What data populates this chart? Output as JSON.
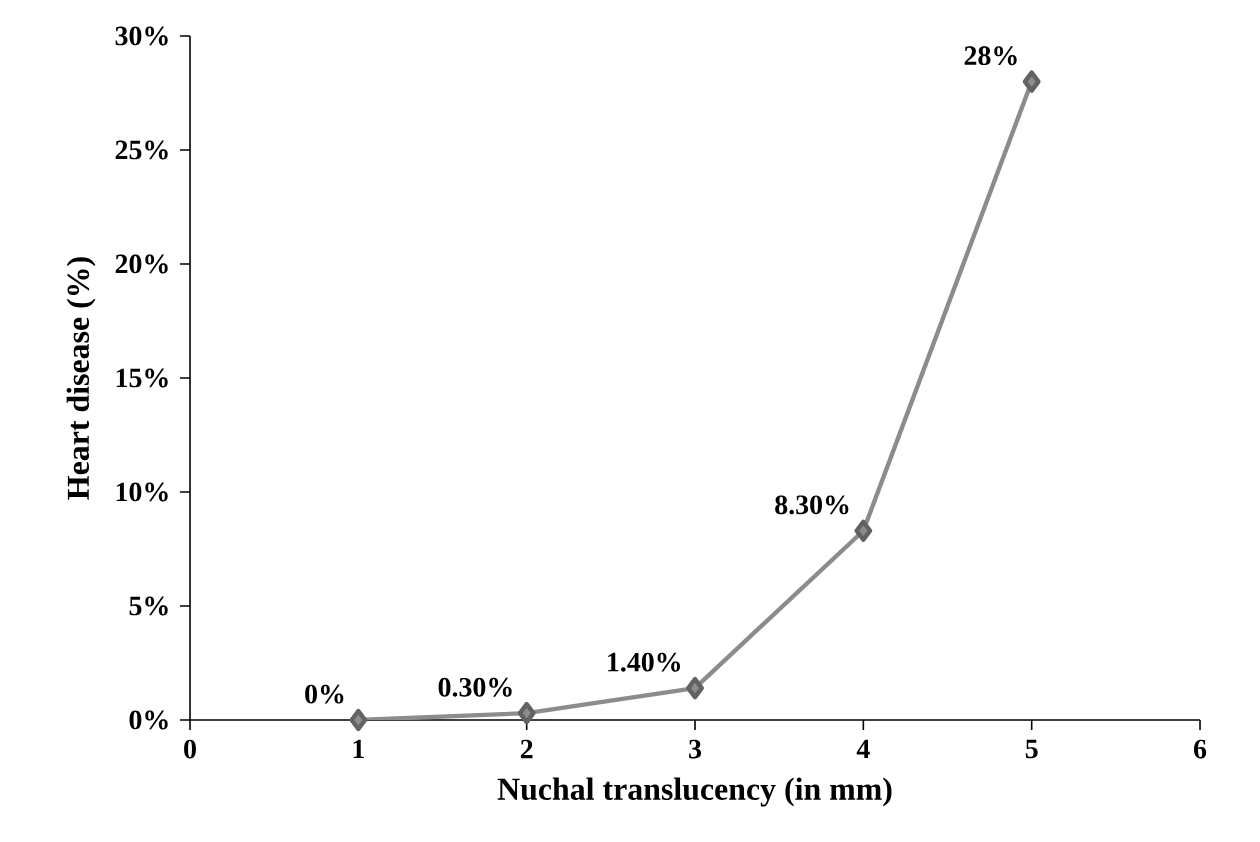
{
  "chart_data": {
    "type": "line",
    "xlabel": "Nuchal translucency (in mm)",
    "ylabel": "Heart disease (%)",
    "x": [
      1,
      2,
      3,
      4,
      5
    ],
    "series": [
      {
        "color": "#8c8c8c",
        "values": [
          0,
          0.3,
          1.4,
          8.3,
          28
        ],
        "value_labels": [
          "0%",
          "0.30%",
          "1.40%",
          "8.30%",
          "28%"
        ]
      }
    ],
    "xlim": [
      0,
      6
    ],
    "xticks": [
      0,
      1,
      2,
      3,
      4,
      5,
      6
    ],
    "ylim": [
      0,
      30
    ],
    "yticks": [
      {
        "value": 0,
        "label": "0%"
      },
      {
        "value": 5,
        "label": "5%"
      },
      {
        "value": 10,
        "label": "10%"
      },
      {
        "value": 15,
        "label": "15%"
      },
      {
        "value": 20,
        "label": "20%"
      },
      {
        "value": 25,
        "label": "25%"
      },
      {
        "value": 30,
        "label": "30%"
      }
    ],
    "marker": "diamond",
    "line_style": "solid"
  }
}
